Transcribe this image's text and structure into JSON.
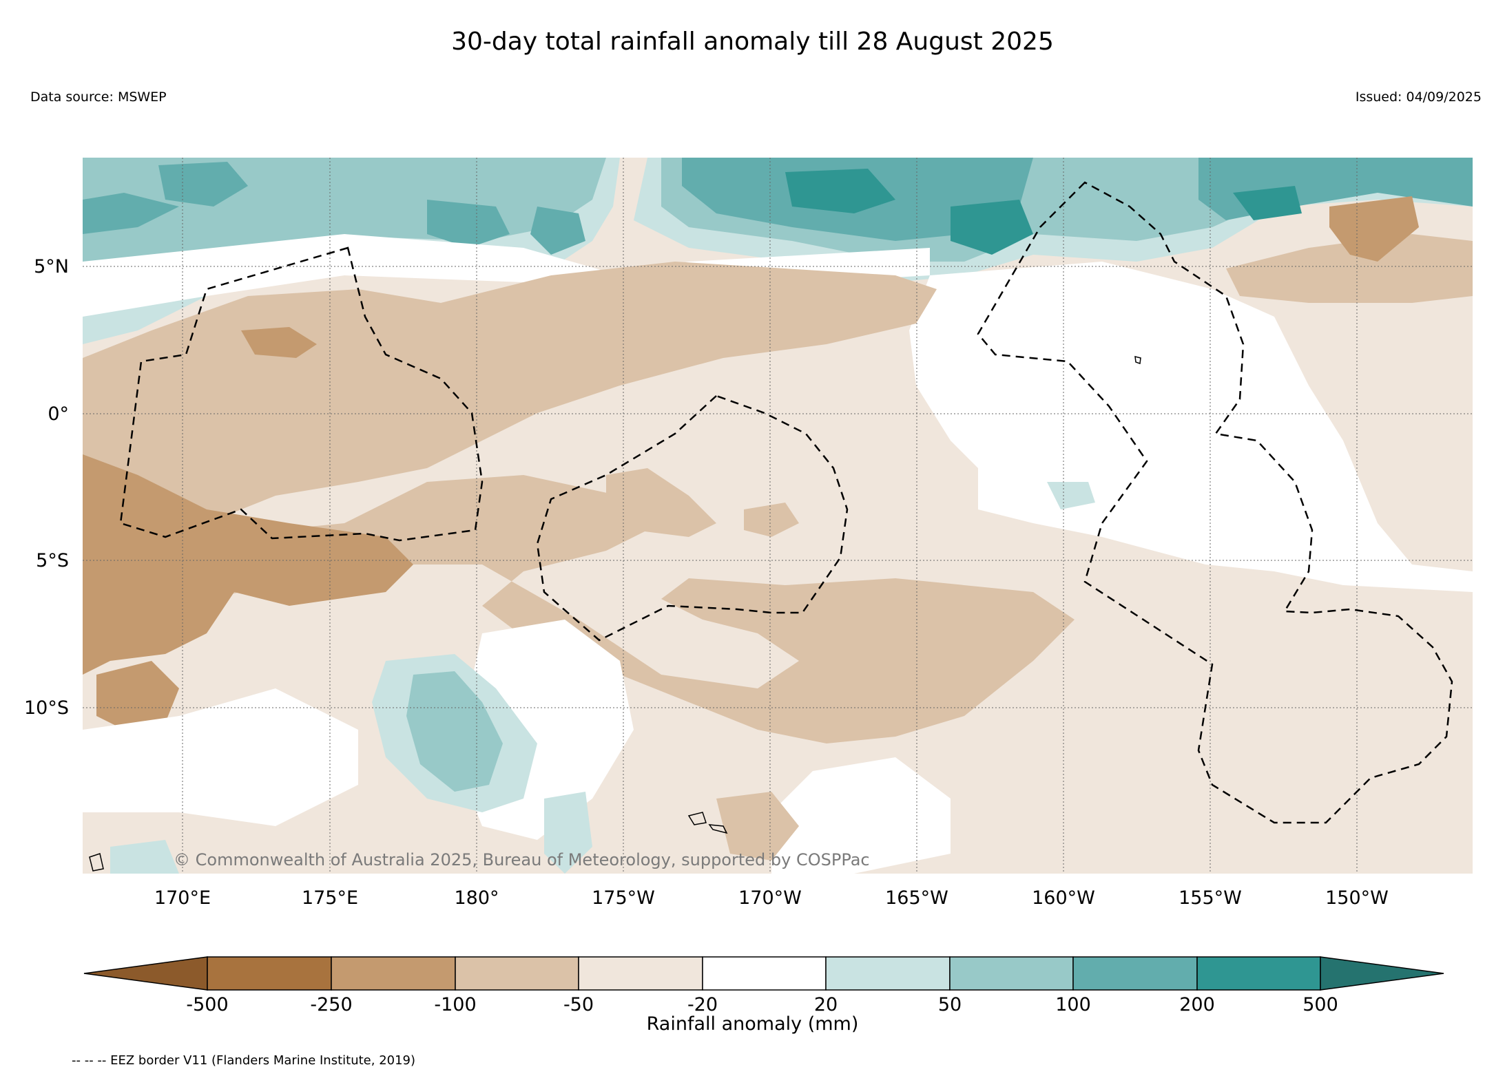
{
  "header": {
    "title": "30-day total rainfall anomaly till 28 August 2025",
    "data_source": "Data source: MSWEP",
    "issued": "Issued: 04/09/2025"
  },
  "map": {
    "lat_ticks": [
      "5°N",
      "0°",
      "5°S",
      "10°S"
    ],
    "lon_ticks": [
      "170°E",
      "175°E",
      "180°",
      "175°W",
      "170°W",
      "165°W",
      "160°W",
      "155°W",
      "150°W"
    ],
    "copyright": "© Commonwealth of Australia 2025, Bureau of Meteorology, supported by COSPPac",
    "colors": {
      "dry_extreme": "#8c5a2b",
      "dry_500": "#a8733e",
      "dry_250": "#c49a6f",
      "dry_100": "#dbc2a8",
      "dry_50": "#f0e6dc",
      "neutral": "#ffffff",
      "wet_20": "#c9e3e2",
      "wet_50": "#98c9c8",
      "wet_100": "#62adad",
      "wet_200": "#2f9692",
      "wet_extreme": "#25736f"
    }
  },
  "colorbar": {
    "tick_labels": [
      "-500",
      "-250",
      "-100",
      "-50",
      "-20",
      "20",
      "50",
      "100",
      "200",
      "500"
    ],
    "title": "Rainfall anomaly (mm)"
  },
  "footnote": "-- -- -- EEZ border V11 (Flanders Marine Institute, 2019)"
}
